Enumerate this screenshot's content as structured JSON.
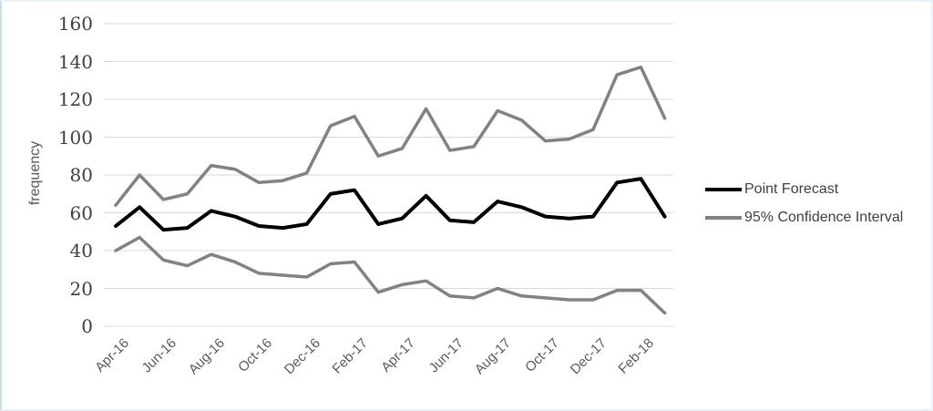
{
  "chart_data": {
    "type": "line",
    "title": "",
    "ylabel": "frequency",
    "xlabel": "",
    "x": [
      "Apr-16",
      "May-16",
      "Jun-16",
      "Jul-16",
      "Aug-16",
      "Sep-16",
      "Oct-16",
      "Nov-16",
      "Dec-16",
      "Jan-17",
      "Feb-17",
      "Mar-17",
      "Apr-17",
      "May-17",
      "Jun-17",
      "Jul-17",
      "Aug-17",
      "Sep-17",
      "Oct-17",
      "Nov-17",
      "Dec-17",
      "Jan-18",
      "Feb-18",
      "Mar-18"
    ],
    "x_tick_interval": 2,
    "series": [
      {
        "name": "95% Confidence Interval (upper bound)",
        "color": "#828282",
        "width": 3.5,
        "values": [
          64,
          80,
          67,
          70,
          85,
          83,
          76,
          77,
          81,
          106,
          111,
          90,
          94,
          115,
          93,
          95,
          114,
          109,
          98,
          99,
          104,
          133,
          137,
          110
        ]
      },
      {
        "name": "95% Confidence Interval (lower bound)",
        "color": "#828282",
        "width": 3.5,
        "values": [
          40,
          47,
          35,
          32,
          38,
          34,
          28,
          27,
          26,
          33,
          34,
          18,
          22,
          24,
          16,
          15,
          20,
          16,
          15,
          14,
          14,
          19,
          19,
          7
        ]
      },
      {
        "name": "Point Forecast",
        "color": "#000000",
        "width": 4,
        "values": [
          53,
          63,
          51,
          52,
          61,
          58,
          53,
          52,
          54,
          70,
          72,
          54,
          57,
          69,
          56,
          55,
          66,
          63,
          58,
          57,
          58,
          76,
          78,
          58
        ]
      }
    ],
    "legend": [
      {
        "label": "Point Forecast",
        "color": "#000000"
      },
      {
        "label": "95% Confidence Interval",
        "color": "#828282"
      }
    ],
    "legend_position": "right",
    "ylim": [
      0,
      160
    ],
    "ytick_step": 20,
    "y_ticks": [
      0,
      20,
      40,
      60,
      80,
      100,
      120,
      140,
      160
    ],
    "grid": true,
    "gridline_color": "#d9d9d9"
  }
}
